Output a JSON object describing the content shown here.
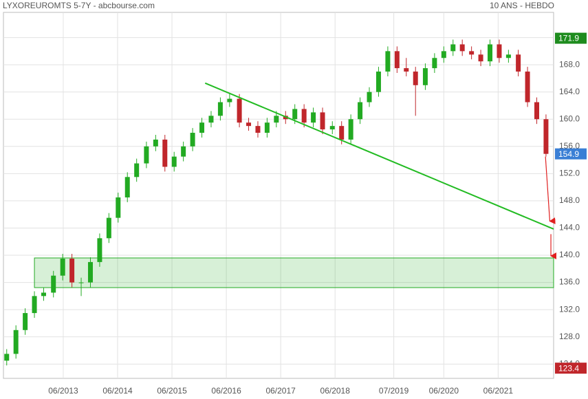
{
  "chart_data": {
    "type": "candlestick",
    "title": "LYXOREUROMTS 5-7Y - abcbourse.com",
    "subtitle": "10 ANS - HEBDO",
    "x": [
      2012.38,
      2012.55,
      2012.72,
      2012.89,
      2013.06,
      2013.24,
      2013.41,
      2013.58,
      2013.75,
      2013.92,
      2014.09,
      2014.26,
      2014.43,
      2014.6,
      2014.77,
      2014.95,
      2015.12,
      2015.29,
      2015.46,
      2015.63,
      2015.8,
      2015.97,
      2016.14,
      2016.31,
      2016.48,
      2016.66,
      2016.83,
      2017.0,
      2017.17,
      2017.34,
      2017.51,
      2017.68,
      2017.85,
      2018.02,
      2018.19,
      2018.37,
      2018.54,
      2018.71,
      2018.88,
      2019.05,
      2019.22,
      2019.39,
      2019.56,
      2019.73,
      2019.9,
      2020.08,
      2020.25,
      2020.42,
      2020.59,
      2020.76,
      2020.93,
      2021.1,
      2021.27,
      2021.44,
      2021.61,
      2021.79,
      2021.96,
      2022.13,
      2022.3
    ],
    "open": [
      124.5,
      125.5,
      129,
      131.5,
      134,
      134.5,
      137,
      139.5,
      136,
      136,
      139,
      142.5,
      145.5,
      148.5,
      151.5,
      153.5,
      156,
      157,
      153,
      154.5,
      156,
      158,
      159.5,
      160.5,
      162.5,
      163,
      159.5,
      159,
      158,
      159.5,
      160.5,
      160,
      161.5,
      159.5,
      161,
      158.5,
      159,
      157,
      160,
      162.5,
      164,
      167,
      170,
      167.5,
      167,
      165,
      167.5,
      169,
      170,
      171,
      170,
      169.5,
      168.5,
      171,
      169,
      169.5,
      167,
      162.5,
      160
    ],
    "high": [
      126.2,
      129.7,
      132.2,
      134.7,
      135.2,
      137.7,
      140.2,
      140.2,
      136.7,
      139.7,
      143.2,
      146.2,
      149.2,
      152.2,
      154.2,
      156.7,
      157.7,
      157.7,
      155.2,
      156.7,
      158.7,
      160.2,
      161.2,
      163.2,
      163.7,
      163.7,
      160.2,
      159.7,
      160.2,
      161.2,
      161.2,
      162.2,
      162.2,
      161.7,
      161.7,
      159.7,
      159.7,
      160.7,
      163.2,
      164.7,
      167.7,
      170.7,
      170.7,
      169,
      167.7,
      168.2,
      169.7,
      170.7,
      171.7,
      171.7,
      170.7,
      170.2,
      171.7,
      171.7,
      170.2,
      170.2,
      167.7,
      163.2,
      160.7
    ],
    "low": [
      123.8,
      124.8,
      128.3,
      130.8,
      133.3,
      133.8,
      136.3,
      135.3,
      134,
      135.3,
      138.3,
      141.8,
      144.8,
      147.8,
      150.8,
      152.8,
      155.3,
      152.3,
      152.3,
      153.8,
      155.3,
      157.3,
      158.8,
      159.8,
      161.8,
      158.8,
      158.3,
      157.3,
      157.3,
      158.8,
      159.3,
      159.3,
      158.8,
      158.8,
      157.8,
      157.8,
      156.3,
      156.3,
      159.3,
      161.8,
      163.3,
      166.3,
      166.8,
      166.3,
      160.5,
      164.3,
      166.8,
      168.3,
      169.3,
      169.3,
      168.8,
      167.8,
      167.8,
      168.3,
      168.3,
      166.3,
      161.8,
      159.3,
      154.5
    ],
    "close": [
      125.5,
      129,
      131.5,
      134,
      134.5,
      137,
      139.5,
      136,
      136,
      139,
      142.5,
      145.5,
      148.5,
      151.5,
      153.5,
      156,
      157,
      153,
      154.5,
      156,
      158,
      159.5,
      160.5,
      162.5,
      163,
      159.5,
      159,
      158,
      159.5,
      160.5,
      160,
      161.5,
      159.5,
      161,
      158.5,
      159,
      157,
      160,
      162.5,
      164,
      167,
      170,
      167.5,
      167,
      165,
      167.5,
      169,
      170,
      171,
      170,
      169.5,
      168.5,
      171,
      169,
      169.5,
      167,
      162.5,
      160,
      154.9
    ],
    "up_color": "#22aa22",
    "down_color": "#c0262b",
    "xlim": [
      2012.32,
      2022.44
    ],
    "ylim": [
      121.9,
      175.7
    ],
    "xticks": [
      {
        "value": 2013.42,
        "label": "06/2013"
      },
      {
        "value": 2014.42,
        "label": "06/2014"
      },
      {
        "value": 2015.42,
        "label": "06/2015"
      },
      {
        "value": 2016.42,
        "label": "06/2016"
      },
      {
        "value": 2017.42,
        "label": "06/2017"
      },
      {
        "value": 2018.42,
        "label": "06/2018"
      },
      {
        "value": 2019.5,
        "label": "07/2019"
      },
      {
        "value": 2020.42,
        "label": "06/2020"
      },
      {
        "value": 2021.42,
        "label": "06/2021"
      }
    ],
    "yticks": [
      {
        "value": 124,
        "label": "124.0"
      },
      {
        "value": 128,
        "label": "128.0"
      },
      {
        "value": 132,
        "label": "132.0"
      },
      {
        "value": 136,
        "label": "136.0"
      },
      {
        "value": 140,
        "label": "140.0"
      },
      {
        "value": 144,
        "label": "144.0"
      },
      {
        "value": 148,
        "label": "148.0"
      },
      {
        "value": 152,
        "label": "152.0"
      },
      {
        "value": 156,
        "label": "156.0"
      },
      {
        "value": 160,
        "label": "160.0"
      },
      {
        "value": 164,
        "label": "164.0"
      },
      {
        "value": 168,
        "label": "168.0"
      },
      {
        "value": 172,
        "label": "172.0"
      }
    ],
    "grid": true,
    "price_markers": [
      {
        "value": 171.9,
        "color": "#1e8c1e"
      },
      {
        "value": 154.9,
        "color": "#3a7fd5"
      },
      {
        "value": 123.4,
        "color": "#c0262b"
      }
    ],
    "trendline": {
      "x": [
        2016.03,
        2022.44
      ],
      "y": [
        165.3,
        143.85
      ],
      "color": "#22bb22"
    },
    "zone": {
      "x": [
        2012.89,
        2022.44
      ],
      "y": [
        135.24,
        139.6
      ],
      "color": "#22aa22"
    },
    "arrows": [
      {
        "x": [
          2022.29,
          2022.37
        ],
        "y": [
          154.5,
          145.0
        ]
      },
      {
        "x": [
          2022.39,
          2022.39
        ],
        "y": [
          143.1,
          139.9
        ]
      }
    ],
    "arrow_color": "#e02020"
  }
}
